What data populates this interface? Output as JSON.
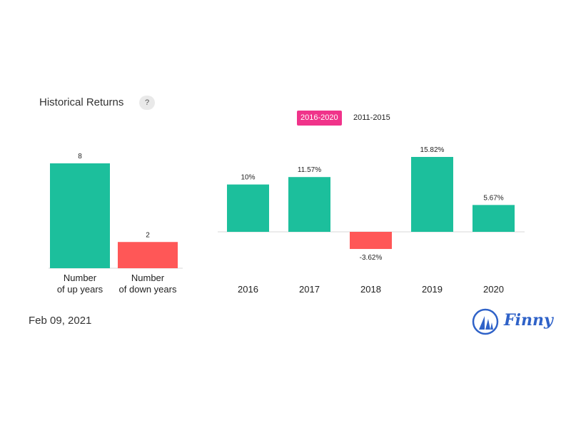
{
  "header": {
    "title": "Historical Returns",
    "help_label": "?"
  },
  "tabs": [
    {
      "label": "2016-2020",
      "active": true
    },
    {
      "label": "2011-2015",
      "active": false
    }
  ],
  "footer": {
    "date": "Feb 09, 2021",
    "brand": "Finny"
  },
  "colors": {
    "positive": "#1cbf9c",
    "negative": "#ff5757",
    "active_tab": "#f0338a",
    "brand": "#2f62c8"
  },
  "chart_data": [
    {
      "type": "bar",
      "categories": [
        [
          "Number",
          "of up years"
        ],
        [
          "Number",
          "of down years"
        ]
      ],
      "values": [
        8,
        2
      ],
      "value_labels": [
        "8",
        "2"
      ],
      "ylim": [
        0,
        8
      ]
    },
    {
      "type": "bar",
      "categories": [
        "2016",
        "2017",
        "2018",
        "2019",
        "2020"
      ],
      "values": [
        10,
        11.57,
        -3.62,
        15.82,
        5.67
      ],
      "value_labels": [
        "10%",
        "11.57%",
        "-3.62%",
        "15.82%",
        "5.67%"
      ]
    }
  ]
}
